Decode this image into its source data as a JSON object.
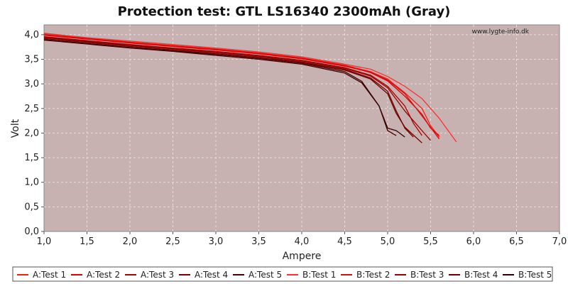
{
  "chart_data": {
    "type": "line",
    "title": "Protection test: GTL LS16340 2300mAh (Gray)",
    "xlabel": "Ampere",
    "ylabel": "Volt",
    "watermark": "www.lygte-info.dk",
    "xlim": [
      1.0,
      7.0
    ],
    "ylim": [
      0.0,
      4.2
    ],
    "x_ticks": [
      "1,0",
      "1,5",
      "2,0",
      "2,5",
      "3,0",
      "3,5",
      "4,0",
      "4,5",
      "5,0",
      "5,5",
      "6,0",
      "6,5",
      "7,0"
    ],
    "y_ticks": [
      "0,0",
      "0,5",
      "1,0",
      "1,5",
      "2,0",
      "2,5",
      "3,0",
      "3,5",
      "4,0"
    ],
    "grid": true,
    "legend_position": "bottom",
    "plot_background": "#c7b1b1",
    "series": [
      {
        "name": "A:Test 1",
        "color": "#ff1a1a",
        "x": [
          1.0,
          1.5,
          2.0,
          2.5,
          3.0,
          3.5,
          4.0,
          4.5,
          4.8,
          5.0,
          5.2,
          5.4,
          5.5,
          5.6
        ],
        "y": [
          4.02,
          3.93,
          3.85,
          3.78,
          3.71,
          3.63,
          3.53,
          3.38,
          3.25,
          3.1,
          2.82,
          2.5,
          2.15,
          1.92
        ]
      },
      {
        "name": "A:Test 2",
        "color": "#e00000",
        "x": [
          1.0,
          1.5,
          2.0,
          2.5,
          3.0,
          3.5,
          4.0,
          4.5,
          4.8,
          5.0,
          5.2,
          5.4,
          5.5,
          5.6
        ],
        "y": [
          4.0,
          3.92,
          3.84,
          3.77,
          3.7,
          3.62,
          3.52,
          3.37,
          3.23,
          3.06,
          2.75,
          2.38,
          2.1,
          1.95
        ]
      },
      {
        "name": "A:Test 3",
        "color": "#b00000",
        "x": [
          1.0,
          1.5,
          2.0,
          2.5,
          3.0,
          3.5,
          4.0,
          4.5,
          4.8,
          5.0,
          5.2,
          5.3,
          5.4
        ],
        "y": [
          3.96,
          3.88,
          3.8,
          3.73,
          3.66,
          3.58,
          3.48,
          3.33,
          3.18,
          2.95,
          2.55,
          2.2,
          1.95
        ]
      },
      {
        "name": "A:Test 4",
        "color": "#7a0000",
        "x": [
          1.0,
          1.5,
          2.0,
          2.5,
          3.0,
          3.5,
          4.0,
          4.5,
          4.8,
          5.0,
          5.1,
          5.2,
          5.3
        ],
        "y": [
          3.94,
          3.86,
          3.78,
          3.71,
          3.63,
          3.55,
          3.45,
          3.3,
          3.12,
          2.85,
          2.45,
          2.1,
          1.92
        ]
      },
      {
        "name": "A:Test 5",
        "color": "#4a0000",
        "x": [
          1.0,
          1.5,
          2.0,
          2.5,
          3.0,
          3.5,
          4.0,
          4.5,
          4.7,
          4.9,
          5.0,
          5.1
        ],
        "y": [
          3.9,
          3.82,
          3.74,
          3.67,
          3.6,
          3.52,
          3.42,
          3.25,
          3.05,
          2.55,
          2.05,
          1.95
        ]
      },
      {
        "name": "B:Test 1",
        "color": "#ff3030",
        "x": [
          1.0,
          1.5,
          2.0,
          2.5,
          3.0,
          3.5,
          4.0,
          4.5,
          4.8,
          5.0,
          5.2,
          5.4,
          5.6,
          5.8
        ],
        "y": [
          4.03,
          3.94,
          3.87,
          3.8,
          3.73,
          3.65,
          3.55,
          3.4,
          3.3,
          3.15,
          2.95,
          2.7,
          2.3,
          1.82
        ]
      },
      {
        "name": "B:Test 2",
        "color": "#d01010",
        "x": [
          1.0,
          1.5,
          2.0,
          2.5,
          3.0,
          3.5,
          4.0,
          4.5,
          4.8,
          5.0,
          5.2,
          5.4,
          5.6
        ],
        "y": [
          3.99,
          3.91,
          3.83,
          3.76,
          3.69,
          3.61,
          3.51,
          3.36,
          3.24,
          3.08,
          2.8,
          2.35,
          1.88
        ]
      },
      {
        "name": "B:Test 3",
        "color": "#9a0000",
        "x": [
          1.0,
          1.5,
          2.0,
          2.5,
          3.0,
          3.5,
          4.0,
          4.5,
          4.8,
          5.0,
          5.2,
          5.4,
          5.5
        ],
        "y": [
          3.95,
          3.87,
          3.79,
          3.72,
          3.65,
          3.57,
          3.47,
          3.32,
          3.16,
          2.92,
          2.45,
          2.05,
          1.85
        ]
      },
      {
        "name": "B:Test 4",
        "color": "#6a0000",
        "x": [
          1.0,
          1.5,
          2.0,
          2.5,
          3.0,
          3.5,
          4.0,
          4.5,
          4.8,
          5.0,
          5.1,
          5.2,
          5.4
        ],
        "y": [
          3.92,
          3.84,
          3.76,
          3.69,
          3.61,
          3.53,
          3.43,
          3.28,
          3.1,
          2.8,
          2.4,
          2.12,
          1.8
        ]
      },
      {
        "name": "B:Test 5",
        "color": "#330000",
        "x": [
          1.0,
          1.5,
          2.0,
          2.5,
          3.0,
          3.5,
          4.0,
          4.5,
          4.7,
          4.9,
          5.0,
          5.1,
          5.2
        ],
        "y": [
          3.89,
          3.81,
          3.73,
          3.66,
          3.58,
          3.5,
          3.4,
          3.22,
          3.02,
          2.55,
          2.1,
          2.05,
          1.92
        ]
      }
    ]
  }
}
